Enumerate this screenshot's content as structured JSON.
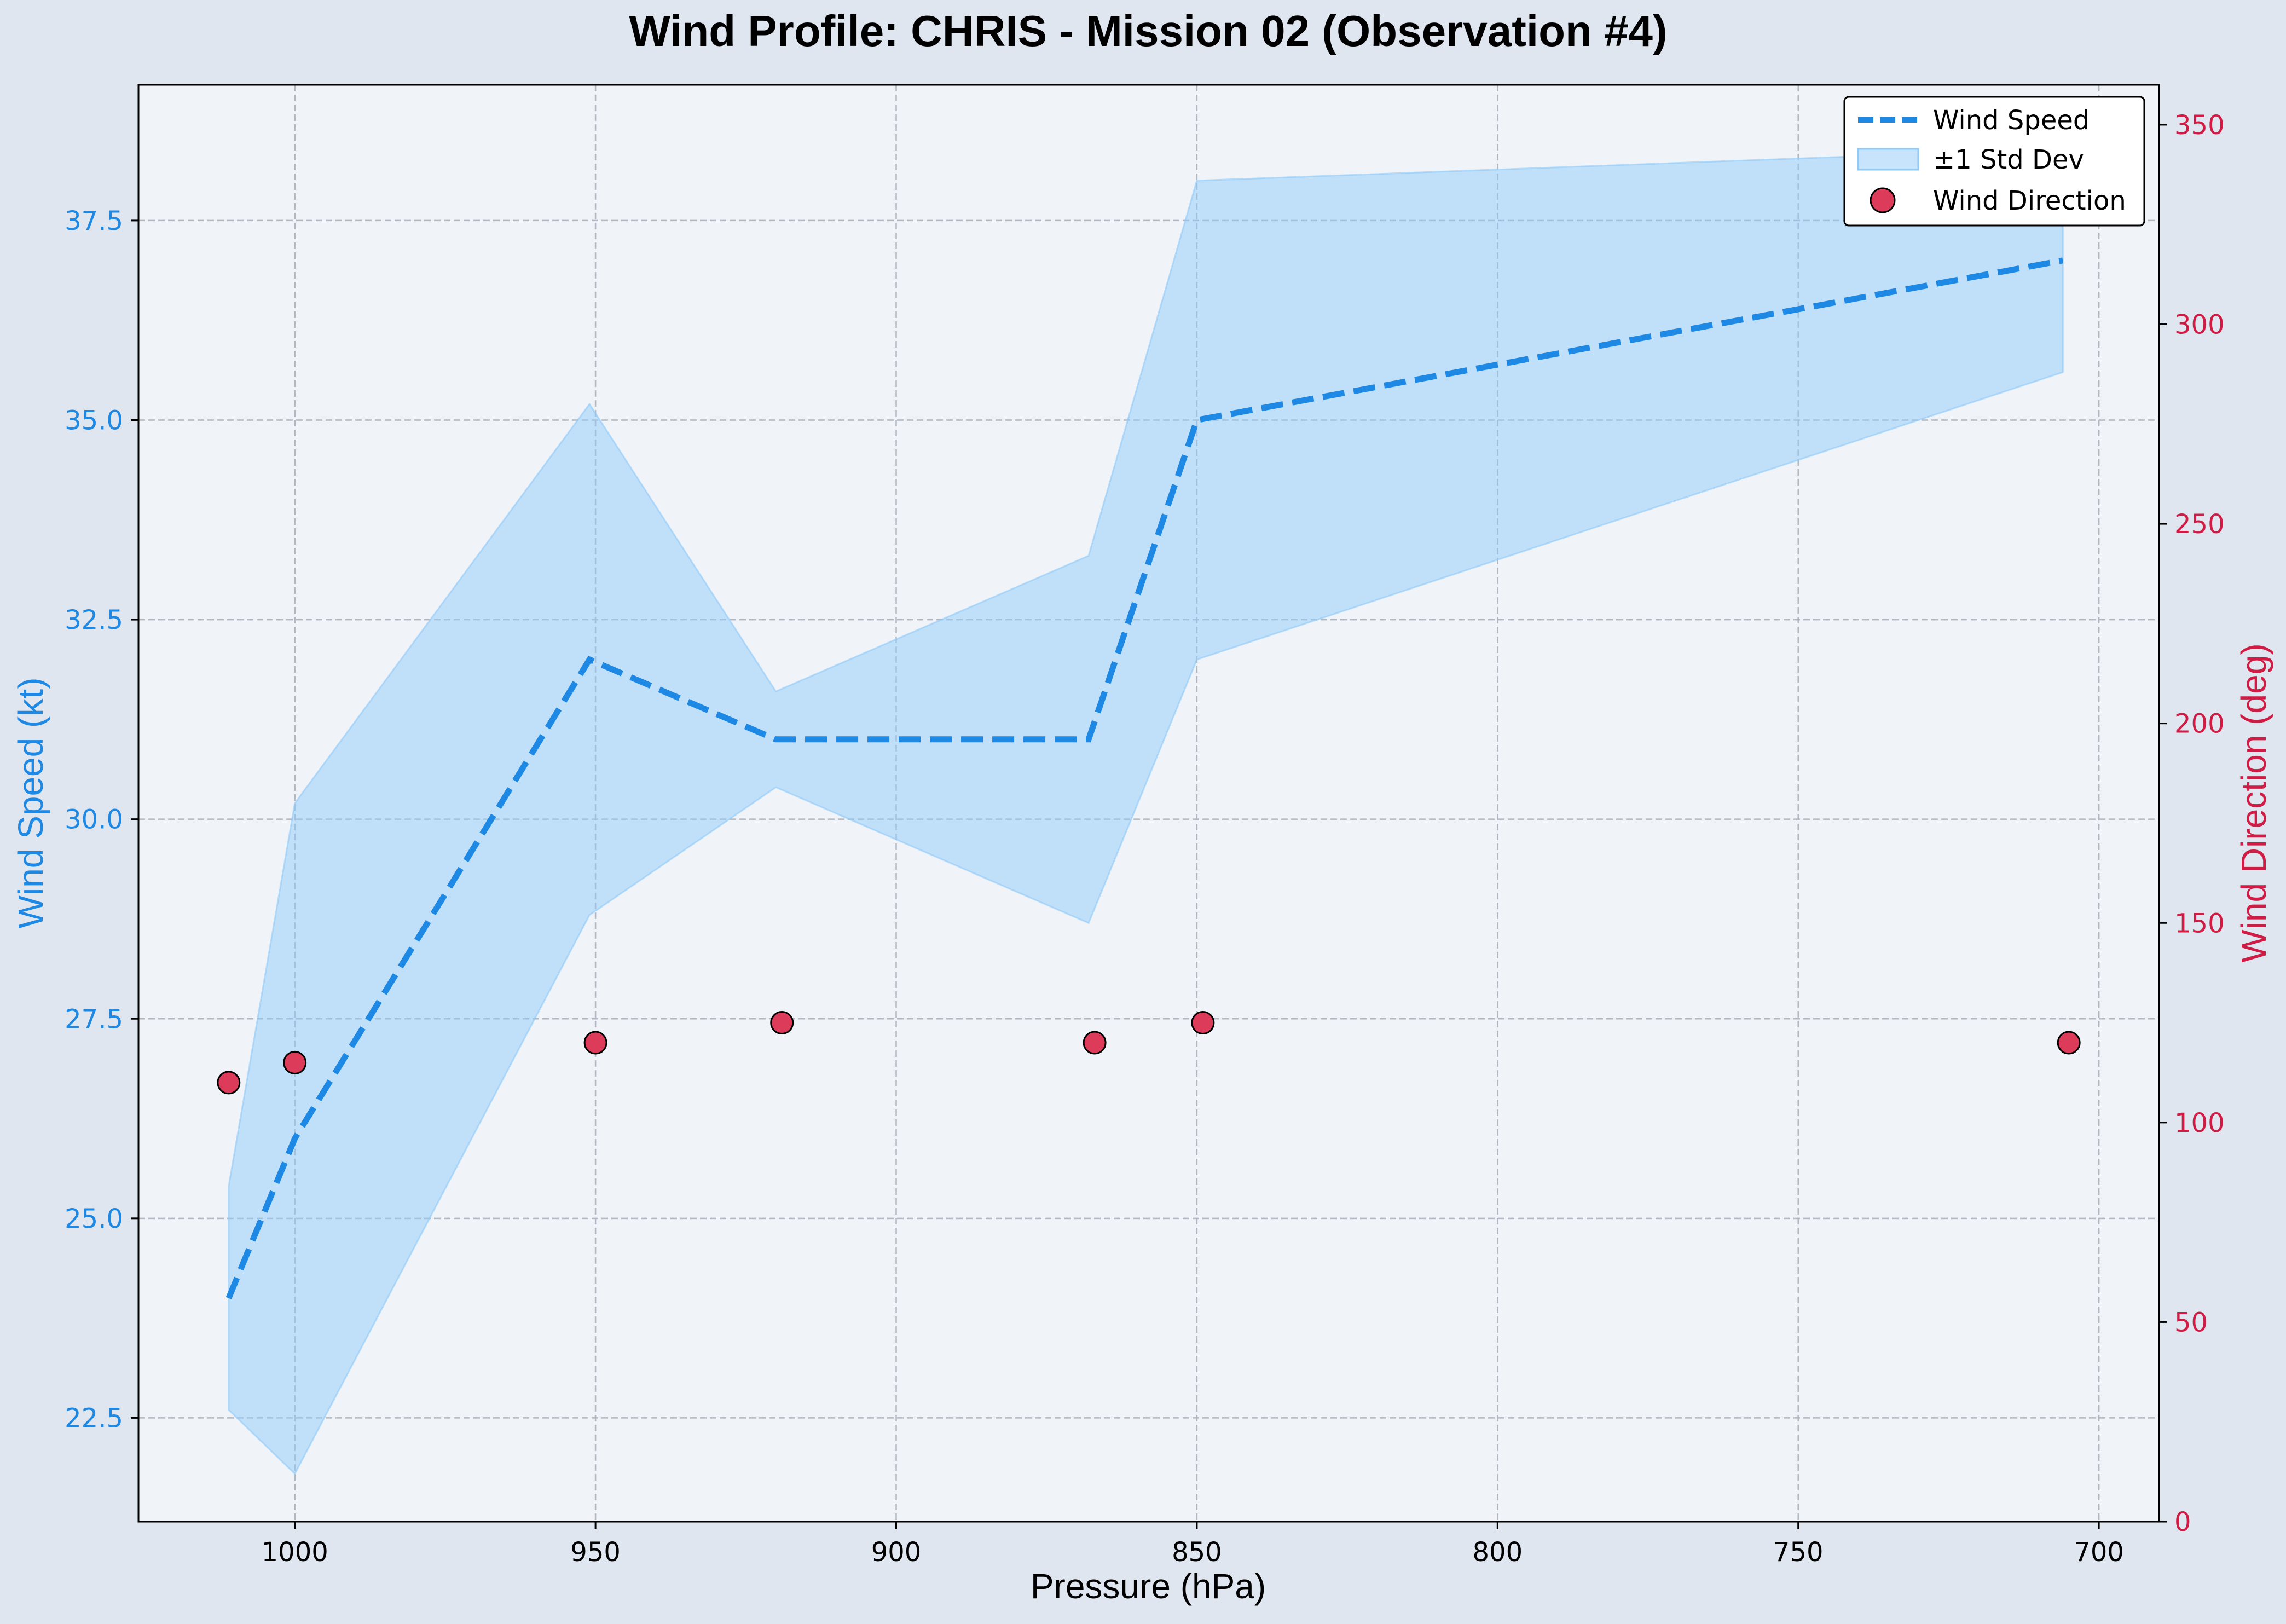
{
  "chart_data": {
    "type": "line",
    "title": "Wind Profile: CHRIS - Mission 02 (Observation #4)",
    "xlabel": "Pressure (hPa)",
    "ylabel": "Wind Speed (kt)",
    "y2label": "Wind Direction (deg)",
    "x_inverted": true,
    "xlim": [
      1026,
      690
    ],
    "ylim": [
      21.2,
      39.2
    ],
    "y2lim": [
      0,
      360
    ],
    "x_ticks": [
      1000,
      950,
      900,
      850,
      800,
      750,
      700
    ],
    "y_ticks": [
      22.5,
      25.0,
      27.5,
      30.0,
      32.5,
      35.0,
      37.5
    ],
    "y2_ticks": [
      0,
      50,
      100,
      150,
      200,
      250,
      300,
      350
    ],
    "grid": true,
    "legend_position": "top-right",
    "colors": {
      "speed": "#1e88e5",
      "band": "#90caf9",
      "direction": "#dc3c5a",
      "direction_axis": "#d01c44",
      "plot_bg": "#f0f4f9",
      "page_bg": "#e0e6ef"
    },
    "series": [
      {
        "name": "Wind Speed",
        "kind": "line",
        "x": [
          1011,
          1000,
          951,
          920,
          868,
          850,
          706
        ],
        "values": [
          24.0,
          26.0,
          32.0,
          31.0,
          31.0,
          35.0,
          37.0
        ]
      },
      {
        "name": "±1 Std Dev",
        "kind": "band",
        "x": [
          1011,
          1000,
          951,
          920,
          868,
          850,
          706
        ],
        "lower": [
          22.6,
          21.8,
          28.8,
          30.4,
          28.7,
          32.0,
          35.6
        ],
        "upper": [
          25.4,
          30.2,
          35.2,
          31.6,
          33.3,
          38.0,
          38.4
        ]
      },
      {
        "name": "Wind Direction",
        "kind": "scatter",
        "axis": "right",
        "x": [
          1011,
          1000,
          950,
          919,
          867,
          849,
          705
        ],
        "values": [
          110,
          115,
          120,
          125,
          120,
          125,
          120
        ]
      }
    ]
  }
}
